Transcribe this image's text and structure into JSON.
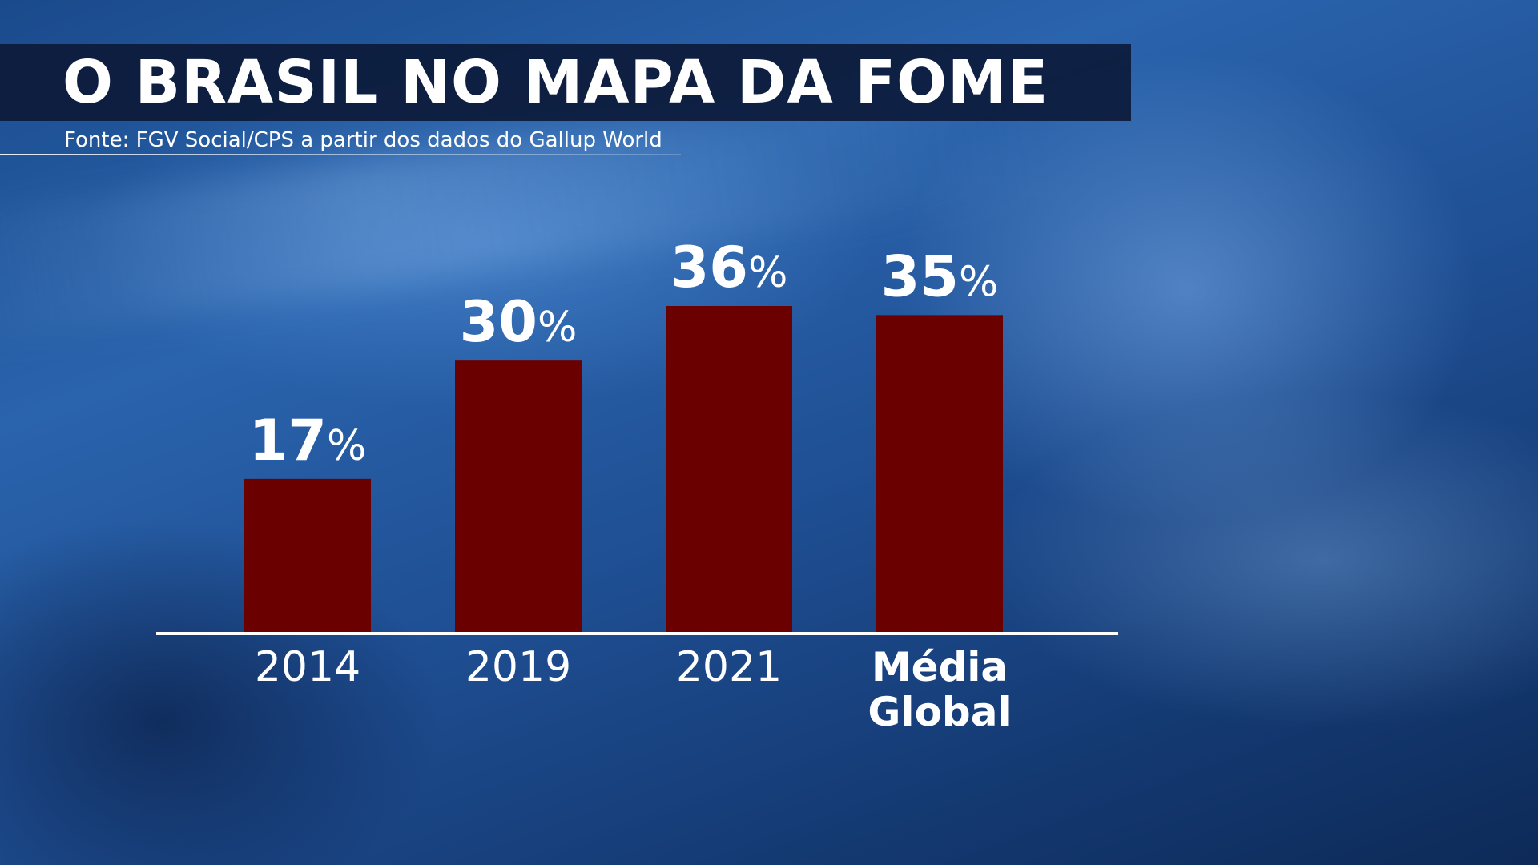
{
  "header": {
    "title": "O BRASIL NO MAPA DA FOME",
    "source": "Fonte: FGV Social/CPS a partir dos dados do Gallup World"
  },
  "chart_data": {
    "type": "bar",
    "categories": [
      "2014",
      "2019",
      "2021",
      "Média Global"
    ],
    "category_lines": [
      [
        "2014"
      ],
      [
        "2019"
      ],
      [
        "2021"
      ],
      [
        "Média",
        "Global"
      ]
    ],
    "values": [
      17,
      30,
      36,
      35
    ],
    "data_labels": [
      "17%",
      "30%",
      "36%",
      "35%"
    ],
    "unit": "%",
    "bar_color": "#6b0000",
    "axis_color": "#ffffff",
    "title": "O BRASIL NO MAPA DA FOME",
    "xlabel": "",
    "ylabel": "",
    "ylim": [
      0,
      36
    ],
    "grid": false,
    "legend": "none"
  }
}
